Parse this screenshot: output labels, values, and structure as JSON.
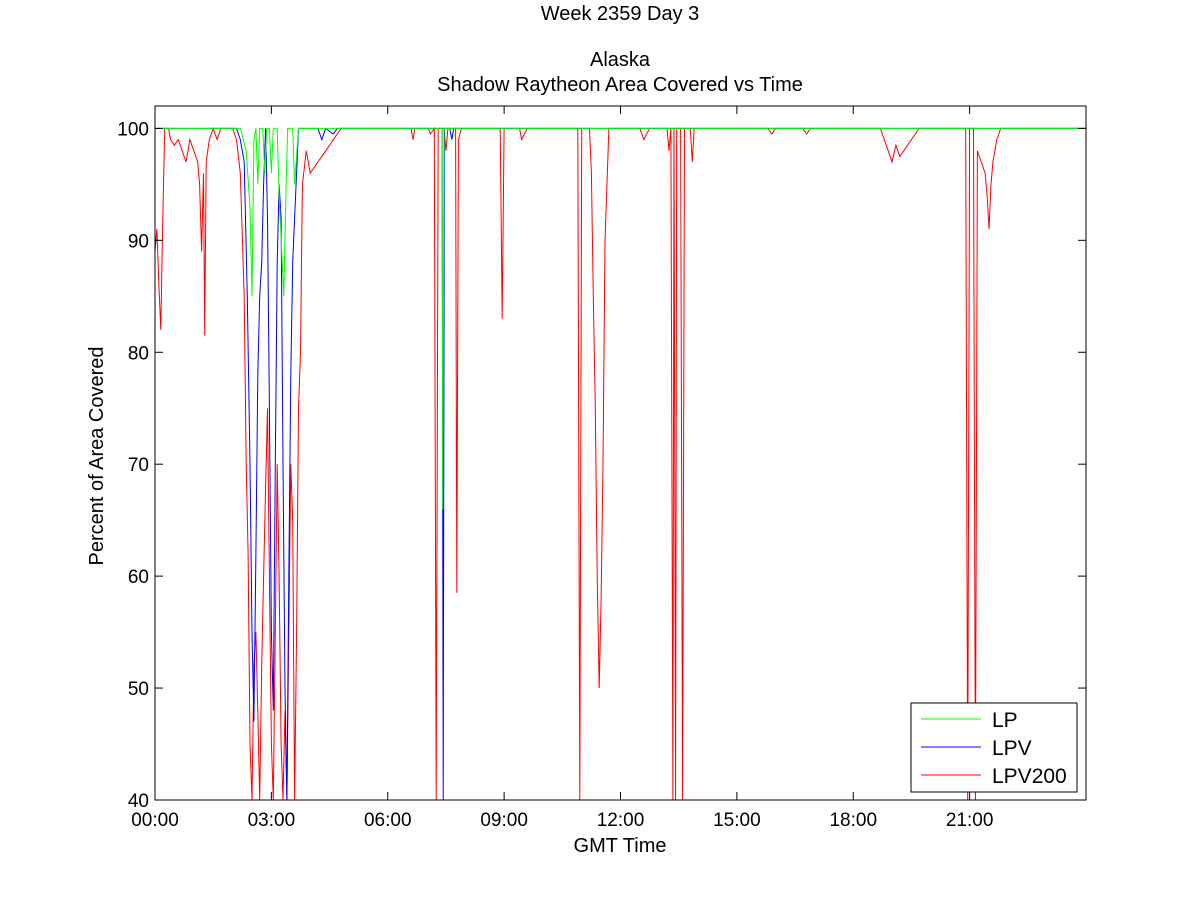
{
  "chart_data": {
    "type": "line",
    "title_lines": [
      "Week 2359 Day 3",
      "Alaska",
      "Shadow Raytheon Area Covered vs Time"
    ],
    "xlabel": "GMT Time",
    "ylabel": "Percent of Area Covered",
    "xlim_hours": [
      0,
      24
    ],
    "ylim": [
      40,
      102
    ],
    "x_ticks": [
      {
        "value": 0,
        "label": "00:00"
      },
      {
        "value": 3,
        "label": "03:00"
      },
      {
        "value": 6,
        "label": "06:00"
      },
      {
        "value": 9,
        "label": "09:00"
      },
      {
        "value": 12,
        "label": "12:00"
      },
      {
        "value": 15,
        "label": "15:00"
      },
      {
        "value": 18,
        "label": "18:00"
      },
      {
        "value": 21,
        "label": "21:00"
      }
    ],
    "y_ticks": [
      {
        "value": 40,
        "label": "40"
      },
      {
        "value": 50,
        "label": "50"
      },
      {
        "value": 60,
        "label": "60"
      },
      {
        "value": 70,
        "label": "70"
      },
      {
        "value": 80,
        "label": "80"
      },
      {
        "value": 90,
        "label": "90"
      },
      {
        "value": 100,
        "label": "100"
      }
    ],
    "grid": false,
    "legend_position": "bottom-right",
    "series": [
      {
        "name": "LP",
        "color": "#00ff00",
        "points": [
          [
            0.0,
            100
          ],
          [
            2.2,
            100
          ],
          [
            2.35,
            98
          ],
          [
            2.45,
            93
          ],
          [
            2.5,
            85
          ],
          [
            2.55,
            99
          ],
          [
            2.6,
            100
          ],
          [
            2.65,
            95
          ],
          [
            2.7,
            100
          ],
          [
            2.78,
            100
          ],
          [
            2.83,
            96
          ],
          [
            2.88,
            100
          ],
          [
            2.95,
            100
          ],
          [
            3.0,
            96
          ],
          [
            3.05,
            100
          ],
          [
            3.15,
            100
          ],
          [
            3.2,
            94
          ],
          [
            3.28,
            88
          ],
          [
            3.32,
            85
          ],
          [
            3.38,
            95
          ],
          [
            3.42,
            100
          ],
          [
            3.55,
            100
          ],
          [
            3.6,
            95
          ],
          [
            3.7,
            100
          ],
          [
            7.4,
            100
          ],
          [
            7.42,
            66
          ],
          [
            7.45,
            100
          ],
          [
            24,
            100
          ]
        ]
      },
      {
        "name": "LPV",
        "color": "#0000ff",
        "points": [
          [
            0.0,
            100
          ],
          [
            2.1,
            100
          ],
          [
            2.2,
            99
          ],
          [
            2.3,
            97
          ],
          [
            2.38,
            85
          ],
          [
            2.45,
            70
          ],
          [
            2.5,
            55
          ],
          [
            2.55,
            47
          ],
          [
            2.6,
            62
          ],
          [
            2.65,
            78
          ],
          [
            2.7,
            85
          ],
          [
            2.75,
            88
          ],
          [
            2.8,
            95
          ],
          [
            2.85,
            100
          ],
          [
            2.9,
            92
          ],
          [
            2.95,
            75
          ],
          [
            3.0,
            55
          ],
          [
            3.05,
            48
          ],
          [
            3.1,
            70
          ],
          [
            3.15,
            88
          ],
          [
            3.2,
            95
          ],
          [
            3.25,
            92
          ],
          [
            3.3,
            70
          ],
          [
            3.35,
            50
          ],
          [
            3.4,
            40
          ],
          [
            3.45,
            60
          ],
          [
            3.5,
            78
          ],
          [
            3.55,
            88
          ],
          [
            3.6,
            92
          ],
          [
            3.65,
            96
          ],
          [
            3.7,
            100
          ],
          [
            4.2,
            100
          ],
          [
            4.3,
            99
          ],
          [
            4.4,
            100
          ],
          [
            4.6,
            99.5
          ],
          [
            4.7,
            100
          ],
          [
            7.4,
            100
          ],
          [
            7.43,
            40
          ],
          [
            7.46,
            100
          ],
          [
            7.6,
            100
          ],
          [
            7.65,
            99
          ],
          [
            7.7,
            100
          ],
          [
            24,
            100
          ]
        ]
      },
      {
        "name": "LPV200",
        "color": "#ff0000",
        "points": [
          [
            0.0,
            89
          ],
          [
            0.05,
            91
          ],
          [
            0.1,
            86
          ],
          [
            0.15,
            82
          ],
          [
            0.2,
            92
          ],
          [
            0.25,
            100
          ],
          [
            0.35,
            100
          ],
          [
            0.4,
            99
          ],
          [
            0.5,
            98.5
          ],
          [
            0.6,
            99
          ],
          [
            0.7,
            98
          ],
          [
            0.8,
            97
          ],
          [
            0.9,
            99
          ],
          [
            1.0,
            98
          ],
          [
            1.1,
            97
          ],
          [
            1.15,
            95
          ],
          [
            1.2,
            89
          ],
          [
            1.25,
            96
          ],
          [
            1.28,
            81.5
          ],
          [
            1.32,
            97
          ],
          [
            1.4,
            99
          ],
          [
            1.5,
            100
          ],
          [
            1.6,
            99
          ],
          [
            1.7,
            100
          ],
          [
            2.0,
            100
          ],
          [
            2.1,
            99
          ],
          [
            2.2,
            96
          ],
          [
            2.3,
            85
          ],
          [
            2.35,
            70
          ],
          [
            2.4,
            62
          ],
          [
            2.45,
            45
          ],
          [
            2.5,
            40
          ],
          [
            2.55,
            52
          ],
          [
            2.6,
            55
          ],
          [
            2.65,
            48
          ],
          [
            2.7,
            40
          ],
          [
            2.75,
            52
          ],
          [
            2.8,
            60
          ],
          [
            2.85,
            68
          ],
          [
            2.9,
            75
          ],
          [
            2.95,
            60
          ],
          [
            3.0,
            45
          ],
          [
            3.05,
            40
          ],
          [
            3.1,
            55
          ],
          [
            3.15,
            70
          ],
          [
            3.2,
            60
          ],
          [
            3.25,
            45
          ],
          [
            3.3,
            40
          ],
          [
            3.35,
            48
          ],
          [
            3.4,
            40
          ],
          [
            3.45,
            55
          ],
          [
            3.5,
            70
          ],
          [
            3.55,
            65
          ],
          [
            3.6,
            40
          ],
          [
            3.65,
            55
          ],
          [
            3.7,
            75
          ],
          [
            3.75,
            80
          ],
          [
            3.8,
            95
          ],
          [
            3.9,
            98
          ],
          [
            4.0,
            96
          ],
          [
            4.2,
            97
          ],
          [
            4.4,
            98
          ],
          [
            4.6,
            99
          ],
          [
            4.8,
            100
          ],
          [
            6.6,
            100
          ],
          [
            6.65,
            99
          ],
          [
            6.7,
            100
          ],
          [
            7.05,
            100
          ],
          [
            7.1,
            99.5
          ],
          [
            7.2,
            100
          ],
          [
            7.25,
            40
          ],
          [
            7.3,
            100
          ],
          [
            7.45,
            100
          ],
          [
            7.5,
            98
          ],
          [
            7.55,
            100
          ],
          [
            7.75,
            100
          ],
          [
            7.78,
            58.5
          ],
          [
            7.82,
            99
          ],
          [
            7.9,
            100
          ],
          [
            8.9,
            100
          ],
          [
            8.95,
            83
          ],
          [
            9.0,
            100
          ],
          [
            9.4,
            100
          ],
          [
            9.45,
            99
          ],
          [
            9.6,
            100
          ],
          [
            10.9,
            100
          ],
          [
            10.95,
            40
          ],
          [
            11.0,
            100
          ],
          [
            11.2,
            100
          ],
          [
            11.25,
            96
          ],
          [
            11.3,
            85
          ],
          [
            11.35,
            75
          ],
          [
            11.4,
            60
          ],
          [
            11.45,
            50
          ],
          [
            11.5,
            58
          ],
          [
            11.55,
            70
          ],
          [
            11.6,
            90
          ],
          [
            11.7,
            100
          ],
          [
            12.5,
            100
          ],
          [
            12.6,
            99
          ],
          [
            12.75,
            100
          ],
          [
            13.2,
            100
          ],
          [
            13.25,
            98
          ],
          [
            13.3,
            100
          ],
          [
            13.35,
            40
          ],
          [
            13.38,
            100
          ],
          [
            13.42,
            40
          ],
          [
            13.45,
            100
          ],
          [
            13.55,
            100
          ],
          [
            13.6,
            40
          ],
          [
            13.65,
            100
          ],
          [
            13.8,
            100
          ],
          [
            13.85,
            97
          ],
          [
            13.9,
            100
          ],
          [
            15.8,
            100
          ],
          [
            15.9,
            99.5
          ],
          [
            16.0,
            100
          ],
          [
            16.7,
            100
          ],
          [
            16.8,
            99.5
          ],
          [
            16.9,
            100
          ],
          [
            18.7,
            100
          ],
          [
            18.8,
            99
          ],
          [
            18.9,
            98
          ],
          [
            19.0,
            97
          ],
          [
            19.1,
            98.5
          ],
          [
            19.2,
            97.5
          ],
          [
            19.3,
            98
          ],
          [
            19.5,
            99
          ],
          [
            19.7,
            100
          ],
          [
            20.9,
            100
          ],
          [
            20.95,
            40
          ],
          [
            21.0,
            100
          ],
          [
            21.1,
            100
          ],
          [
            21.15,
            40
          ],
          [
            21.2,
            98
          ],
          [
            21.3,
            97
          ],
          [
            21.4,
            96
          ],
          [
            21.45,
            94
          ],
          [
            21.5,
            91
          ],
          [
            21.55,
            95
          ],
          [
            21.6,
            97
          ],
          [
            21.7,
            99
          ],
          [
            21.8,
            100
          ],
          [
            24,
            100
          ]
        ]
      }
    ]
  }
}
